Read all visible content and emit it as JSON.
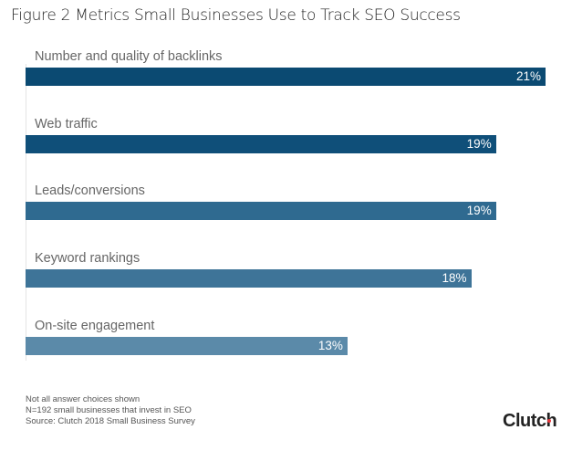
{
  "chart_data": {
    "type": "bar",
    "orientation": "horizontal",
    "title": "Figure 2 Metrics Small Businesses Use to Track SEO Success",
    "categories": [
      "Number and quality of backlinks",
      "Web traffic",
      "Leads/conversions",
      "Keyword rankings",
      "On-site engagement"
    ],
    "values": [
      21,
      19,
      19,
      18,
      13
    ],
    "data_labels": [
      "21%",
      "19%",
      "19%",
      "18%",
      "13%"
    ],
    "colors": [
      "#0b4a72",
      "#0f4f79",
      "#2f6a90",
      "#3e7498",
      "#5b8aa9"
    ],
    "xlim": [
      0,
      21
    ],
    "grid": false
  },
  "notes": [
    "Not all answer choices shown",
    "N=192 small businesses that invest in SEO",
    "Source: Clutch 2018 Small Business Survey"
  ],
  "logo": "Clutch",
  "logo_dot_color": "#e8383d"
}
